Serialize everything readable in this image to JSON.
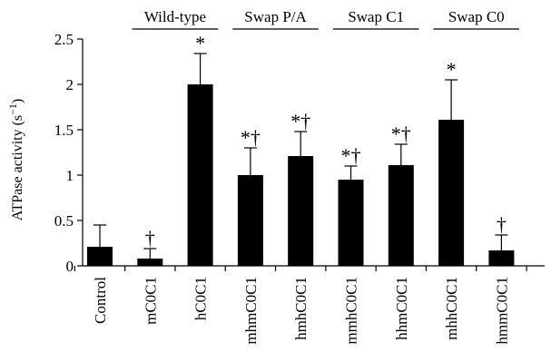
{
  "chart_data": {
    "type": "bar",
    "ylabel": "ATPase activity (s",
    "ylabel_unit_sup": "−1",
    "ylabel_close": ")",
    "ylim": [
      0,
      2.5
    ],
    "yticks": [
      "0",
      "0.5",
      "1",
      "1.5",
      "2",
      "2.5"
    ],
    "ytick_values": [
      0,
      0.5,
      1,
      1.5,
      2,
      2.5
    ],
    "categories": [
      "Control",
      "mC0C1",
      "hC0C1",
      "mhmC0C1",
      "hmhC0C1",
      "mmhC0C1",
      "hhmC0C1",
      "mhhC0C1",
      "hmmC0C1"
    ],
    "values": [
      0.21,
      0.08,
      2.0,
      1.0,
      1.21,
      0.95,
      1.11,
      1.61,
      0.17
    ],
    "errors": [
      0.24,
      0.11,
      0.34,
      0.3,
      0.27,
      0.15,
      0.23,
      0.44,
      0.17
    ],
    "annotations": [
      "",
      "†",
      "*",
      "*†",
      "*†",
      "*†",
      "*†",
      "*",
      "†"
    ],
    "groups": [
      {
        "label": "Wild-type",
        "from": 1,
        "to": 2
      },
      {
        "label": "Swap P/A",
        "from": 3,
        "to": 4
      },
      {
        "label": "Swap C1",
        "from": 5,
        "to": 6
      },
      {
        "label": "Swap C0",
        "from": 7,
        "to": 8
      }
    ],
    "grid": false,
    "legend": "none"
  }
}
